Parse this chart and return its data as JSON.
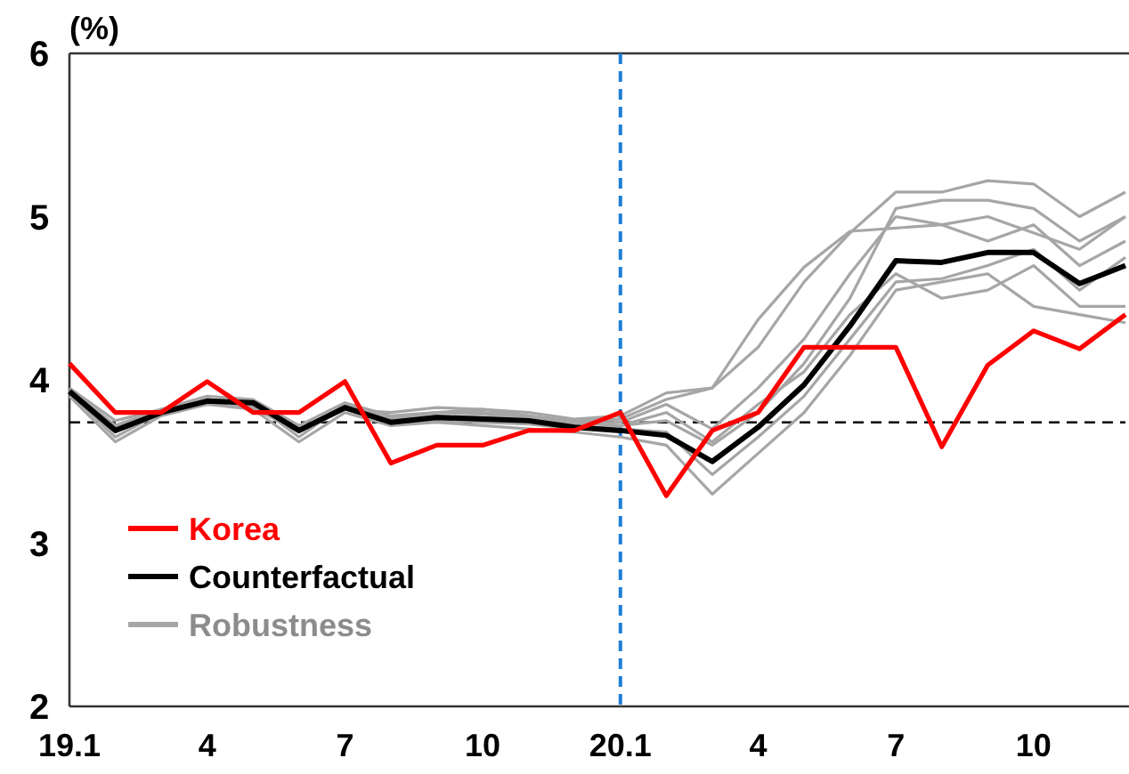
{
  "chart_data": {
    "type": "line",
    "ylabel": "(%)",
    "categories": [
      "19.1",
      null,
      null,
      "4",
      null,
      null,
      "7",
      null,
      null,
      "10",
      null,
      null,
      "20.1",
      null,
      null,
      "4",
      null,
      null,
      "7",
      null,
      null,
      "10",
      null,
      null
    ],
    "ylim": [
      2,
      6
    ],
    "yticks": [
      2,
      3,
      4,
      5,
      6
    ],
    "grid": false,
    "legend": "bottom left",
    "marker": "none",
    "line_style": "solid",
    "ref_lines": [
      {
        "axis": "y",
        "value": 3.74,
        "color": "#000000",
        "line_style": "dashed"
      },
      {
        "axis": "x",
        "value": "20.1",
        "color": "#1f7fd6",
        "line_style": "dashed"
      }
    ],
    "series": [
      {
        "name": "Korea",
        "color": "#ff0000",
        "values": [
          4.1,
          3.8,
          3.8,
          3.99,
          3.8,
          3.8,
          3.99,
          3.49,
          3.6,
          3.6,
          3.69,
          3.69,
          3.8,
          3.29,
          3.69,
          3.8,
          4.2,
          4.2,
          4.2,
          3.59,
          4.09,
          4.3,
          4.19,
          4.4
        ]
      },
      {
        "name": "Counterfactual",
        "color": "#000000",
        "values": [
          3.93,
          3.69,
          3.8,
          3.87,
          3.86,
          3.69,
          3.83,
          3.74,
          3.77,
          3.76,
          3.75,
          3.71,
          3.69,
          3.66,
          3.5,
          3.71,
          3.97,
          4.33,
          4.73,
          4.72,
          4.78,
          4.78,
          4.59,
          4.7
        ]
      },
      {
        "name": "Robustness",
        "color": "#a6a6a6",
        "values": [
          3.95,
          3.75,
          3.82,
          3.9,
          3.88,
          3.72,
          3.86,
          3.78,
          3.8,
          3.82,
          3.8,
          3.76,
          3.78,
          3.92,
          3.95,
          4.2,
          4.6,
          4.9,
          5.15,
          5.15,
          5.22,
          5.2,
          5.0,
          5.15
        ]
      },
      {
        "color": "#a6a6a6",
        "values": [
          3.92,
          3.7,
          3.8,
          3.88,
          3.86,
          3.7,
          3.84,
          3.76,
          3.8,
          3.8,
          3.78,
          3.75,
          3.76,
          3.88,
          3.95,
          4.37,
          4.69,
          4.91,
          4.93,
          4.95,
          5.0,
          4.9,
          4.8,
          5.0
        ]
      },
      {
        "color": "#a6a6a6",
        "values": [
          3.9,
          3.7,
          3.8,
          3.85,
          3.85,
          3.68,
          3.82,
          3.74,
          3.75,
          3.74,
          3.73,
          3.7,
          3.72,
          3.75,
          3.6,
          3.8,
          4.1,
          4.5,
          5.05,
          5.1,
          5.1,
          5.05,
          4.85,
          5.0
        ]
      },
      {
        "color": "#a6a6a6",
        "values": [
          3.9,
          3.62,
          3.78,
          3.85,
          3.82,
          3.62,
          3.8,
          3.72,
          3.74,
          3.72,
          3.7,
          3.68,
          3.65,
          3.6,
          3.3,
          3.55,
          3.8,
          4.15,
          4.55,
          4.6,
          4.65,
          4.45,
          4.4,
          4.35
        ]
      },
      {
        "color": "#a6a6a6",
        "values": [
          3.92,
          3.65,
          3.8,
          3.88,
          3.86,
          3.65,
          3.85,
          3.76,
          3.78,
          3.77,
          3.76,
          3.72,
          3.7,
          3.68,
          3.42,
          3.65,
          3.9,
          4.25,
          4.6,
          4.62,
          4.7,
          4.8,
          4.55,
          4.75
        ]
      },
      {
        "color": "#a6a6a6",
        "values": [
          3.93,
          3.72,
          3.82,
          3.86,
          3.84,
          3.7,
          3.82,
          3.8,
          3.83,
          3.82,
          3.78,
          3.74,
          3.72,
          3.8,
          3.62,
          3.85,
          4.05,
          4.4,
          4.65,
          4.5,
          4.55,
          4.7,
          4.45,
          4.45
        ]
      },
      {
        "color": "#a6a6a6",
        "values": [
          3.94,
          3.72,
          3.8,
          3.88,
          3.83,
          3.68,
          3.84,
          3.77,
          3.8,
          3.79,
          3.77,
          3.73,
          3.74,
          3.85,
          3.7,
          3.95,
          4.25,
          4.65,
          5.0,
          4.95,
          4.85,
          4.95,
          4.7,
          4.85
        ]
      }
    ]
  }
}
